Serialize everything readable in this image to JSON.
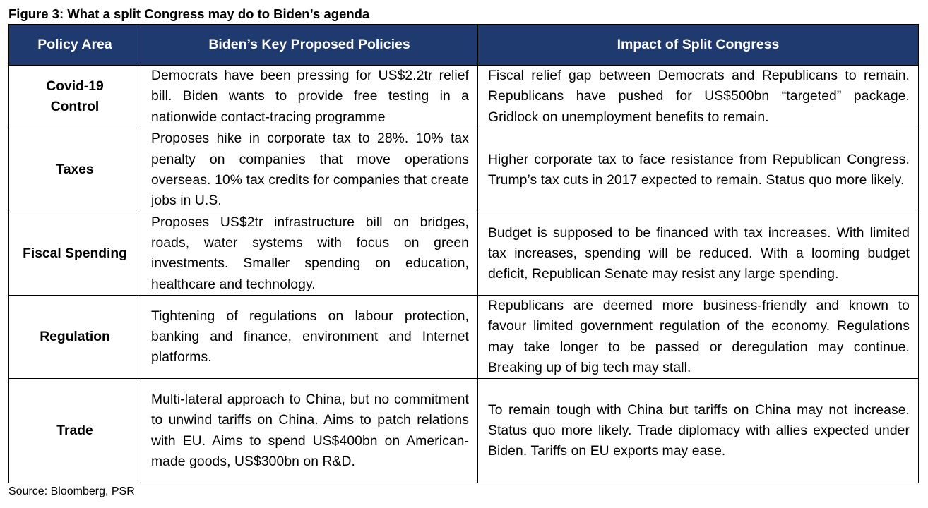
{
  "figure": {
    "title": "Figure 3: What a split Congress may do to Biden’s agenda"
  },
  "table": {
    "headers": [
      "Policy Area",
      "Biden’s Key Proposed Policies",
      "Impact of Split Congress"
    ],
    "header_background": "#1f3a6e",
    "header_text_color": "#ffffff",
    "rows": [
      {
        "area": "Covid-19 Control",
        "policies": "Democrats have been pressing for US$2.2tr relief bill. Biden wants to provide free testing in a nationwide contact-tracing programme",
        "impact": "Fiscal relief gap between Democrats and Republicans to remain. Republicans have pushed for US$500bn “targeted” package. Gridlock on unemployment benefits to remain."
      },
      {
        "area": "Taxes",
        "policies": "Proposes hike in corporate tax to 28%. 10% tax penalty on companies that move operations overseas. 10% tax credits for companies that create jobs in U.S.",
        "impact": "Higher corporate tax to face resistance from Republican Congress. Trump’s tax cuts in 2017 expected to remain. Status quo more likely."
      },
      {
        "area": "Fiscal Spending",
        "policies": "Proposes US$2tr infrastructure bill on bridges, roads, water systems with focus on green investments. Smaller spending on education, healthcare and technology.",
        "impact": "Budget is supposed to be financed with tax increases. With limited tax increases, spending will be reduced. With a looming budget deficit, Republican Senate may resist any large spending."
      },
      {
        "area": "Regulation",
        "policies": "Tightening of regulations on labour protection, banking and finance, environment and Internet platforms.",
        "impact": "Republicans are deemed more business-friendly and known to favour limited government regulation of the economy. Regulations may take longer to be passed or deregulation may continue. Breaking up of big tech may stall."
      },
      {
        "area": "Trade",
        "policies": "Multi-lateral approach to China, but no commitment to unwind tariffs on China. Aims to patch relations with EU. Aims to spend US$400bn on American-made goods, US$300bn on R&D.",
        "impact": "To remain tough with China but tariffs on China may not increase. Status quo more likely. Trade diplomacy with allies expected under Biden. Tariffs on EU exports may ease."
      }
    ]
  },
  "source": "Source: Bloomberg, PSR"
}
